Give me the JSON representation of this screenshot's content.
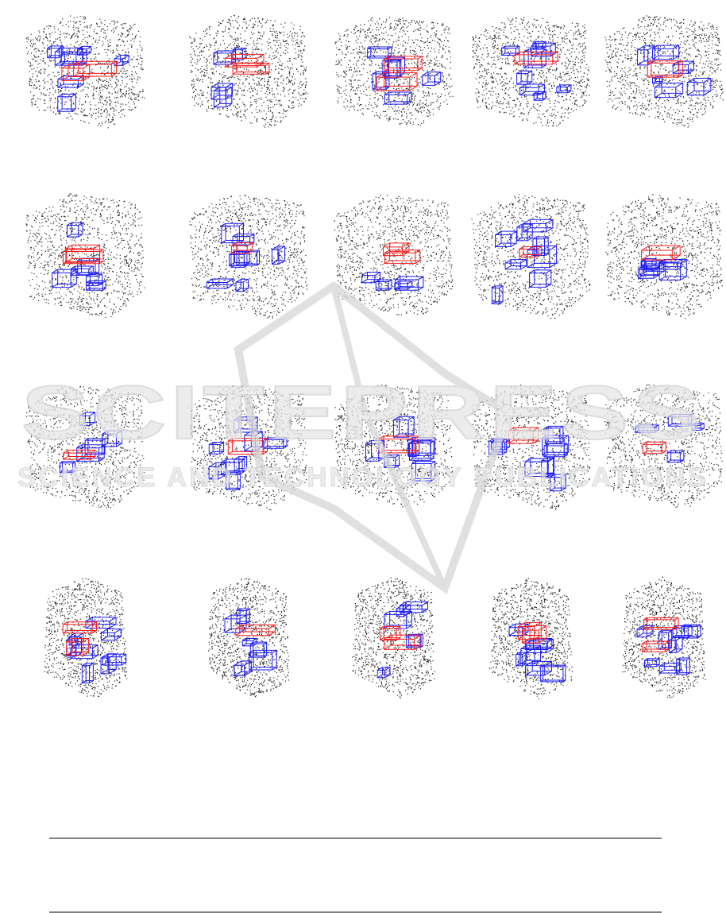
{
  "watermark": {
    "title": "SCITEPRESS",
    "subtitle": "SCIENCE AND TECHNOLOGY PUBLICATIONS"
  }
}
